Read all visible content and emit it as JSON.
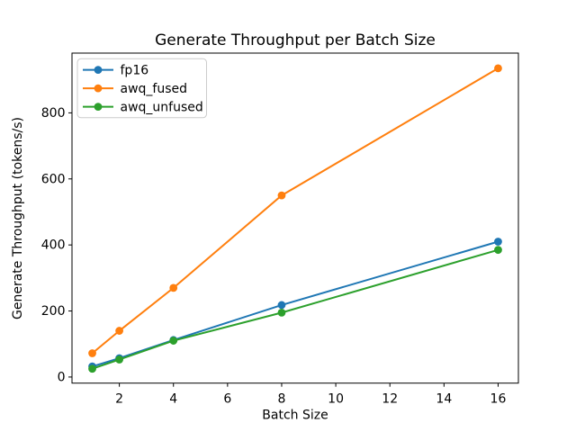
{
  "chart_data": {
    "type": "line",
    "title": "Generate Throughput per Batch Size",
    "xlabel": "Batch Size",
    "ylabel": "Generate Throughput (tokens/s)",
    "x": [
      1,
      2,
      4,
      8,
      16
    ],
    "series": [
      {
        "name": "fp16",
        "color": "#1f77b4",
        "marker": "o",
        "values": [
          32,
          57,
          112,
          218,
          410
        ]
      },
      {
        "name": "awq_fused",
        "color": "#ff7f0e",
        "marker": "o",
        "values": [
          72,
          140,
          270,
          550,
          935
        ]
      },
      {
        "name": "awq_unfused",
        "color": "#2ca02c",
        "marker": "o",
        "values": [
          25,
          53,
          110,
          195,
          385
        ]
      }
    ],
    "xticks": [
      2,
      4,
      6,
      8,
      10,
      12,
      14,
      16
    ],
    "yticks": [
      0,
      200,
      400,
      600,
      800
    ],
    "xlim": [
      0.25,
      16.75
    ],
    "ylim": [
      -18.5,
      981
    ],
    "grid": false,
    "background": "#ffffff",
    "spine_color": "#000000",
    "legend": {
      "position": "upper left",
      "border_color": "#cccccc",
      "entries": [
        "fp16",
        "awq_fused",
        "awq_unfused"
      ]
    }
  }
}
